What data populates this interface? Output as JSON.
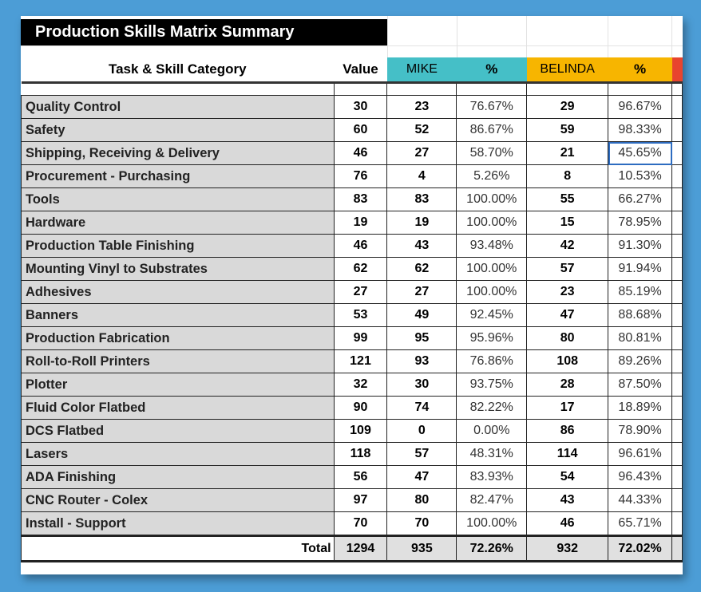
{
  "title": "Production Skills Matrix Summary",
  "headers": {
    "category": "Task & Skill Category",
    "value": "Value",
    "p1": "MIKE",
    "p1pct": "%",
    "p2": "BELINDA",
    "p2pct": "%"
  },
  "colors": {
    "mike": "#45bfc7",
    "belinda": "#f7b500",
    "next": "#e8442e"
  },
  "rows": [
    {
      "cat": "Quality Control",
      "value": "30",
      "mike": "23",
      "mikePct": "76.67%",
      "belinda": "29",
      "belindaPct": "96.67%"
    },
    {
      "cat": "Safety",
      "value": "60",
      "mike": "52",
      "mikePct": "86.67%",
      "belinda": "59",
      "belindaPct": "98.33%"
    },
    {
      "cat": "Shipping, Receiving & Delivery",
      "value": "46",
      "mike": "27",
      "mikePct": "58.70%",
      "belinda": "21",
      "belindaPct": "45.65%"
    },
    {
      "cat": "Procurement - Purchasing",
      "value": "76",
      "mike": "4",
      "mikePct": "5.26%",
      "belinda": "8",
      "belindaPct": "10.53%"
    },
    {
      "cat": "Tools",
      "value": "83",
      "mike": "83",
      "mikePct": "100.00%",
      "belinda": "55",
      "belindaPct": "66.27%"
    },
    {
      "cat": "Hardware",
      "value": "19",
      "mike": "19",
      "mikePct": "100.00%",
      "belinda": "15",
      "belindaPct": "78.95%"
    },
    {
      "cat": "Production Table Finishing",
      "value": "46",
      "mike": "43",
      "mikePct": "93.48%",
      "belinda": "42",
      "belindaPct": "91.30%"
    },
    {
      "cat": "Mounting Vinyl to Substrates",
      "value": "62",
      "mike": "62",
      "mikePct": "100.00%",
      "belinda": "57",
      "belindaPct": "91.94%"
    },
    {
      "cat": "Adhesives",
      "value": "27",
      "mike": "27",
      "mikePct": "100.00%",
      "belinda": "23",
      "belindaPct": "85.19%"
    },
    {
      "cat": "Banners",
      "value": "53",
      "mike": "49",
      "mikePct": "92.45%",
      "belinda": "47",
      "belindaPct": "88.68%"
    },
    {
      "cat": "Production Fabrication",
      "value": "99",
      "mike": "95",
      "mikePct": "95.96%",
      "belinda": "80",
      "belindaPct": "80.81%"
    },
    {
      "cat": "Roll-to-Roll Printers",
      "value": "121",
      "mike": "93",
      "mikePct": "76.86%",
      "belinda": "108",
      "belindaPct": "89.26%"
    },
    {
      "cat": "Plotter",
      "value": "32",
      "mike": "30",
      "mikePct": "93.75%",
      "belinda": "28",
      "belindaPct": "87.50%"
    },
    {
      "cat": "Fluid Color Flatbed",
      "value": "90",
      "mike": "74",
      "mikePct": "82.22%",
      "belinda": "17",
      "belindaPct": "18.89%"
    },
    {
      "cat": "DCS Flatbed",
      "value": "109",
      "mike": "0",
      "mikePct": "0.00%",
      "belinda": "86",
      "belindaPct": "78.90%"
    },
    {
      "cat": "Lasers",
      "value": "118",
      "mike": "57",
      "mikePct": "48.31%",
      "belinda": "114",
      "belindaPct": "96.61%"
    },
    {
      "cat": "ADA Finishing",
      "value": "56",
      "mike": "47",
      "mikePct": "83.93%",
      "belinda": "54",
      "belindaPct": "96.43%"
    },
    {
      "cat": "CNC Router - Colex",
      "value": "97",
      "mike": "80",
      "mikePct": "82.47%",
      "belinda": "43",
      "belindaPct": "44.33%"
    },
    {
      "cat": "Install - Support",
      "value": "70",
      "mike": "70",
      "mikePct": "100.00%",
      "belinda": "46",
      "belindaPct": "65.71%"
    }
  ],
  "total": {
    "label": "Total",
    "value": "1294",
    "mike": "935",
    "mikePct": "72.26%",
    "belinda": "932",
    "belindaPct": "72.02%"
  }
}
